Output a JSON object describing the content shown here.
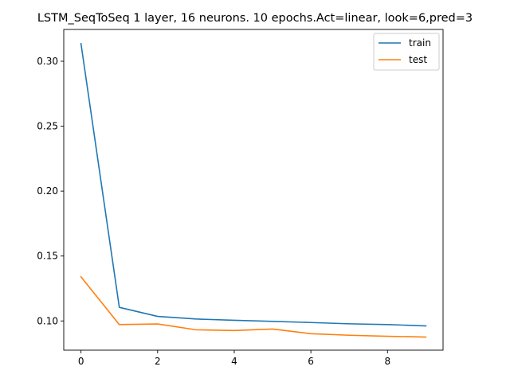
{
  "chart_data": {
    "type": "line",
    "title": "LSTM_SeqToSeq 1 layer, 16 neurons. 10 epochs.Act=linear, look=6,pred=3",
    "xlabel": "",
    "ylabel": "",
    "x": [
      0,
      1,
      2,
      3,
      4,
      5,
      6,
      7,
      8,
      9
    ],
    "xlim": [
      -0.45,
      9.45
    ],
    "ylim": [
      0.0775,
      0.3245
    ],
    "xticks": [
      0,
      2,
      4,
      6,
      8
    ],
    "xtick_labels": [
      "0",
      "2",
      "4",
      "6",
      "8"
    ],
    "yticks": [
      0.1,
      0.15,
      0.2,
      0.25,
      0.3
    ],
    "ytick_labels": [
      "0.10",
      "0.15",
      "0.20",
      "0.25",
      "0.30"
    ],
    "grid": false,
    "legend_position": "top-right",
    "series": [
      {
        "name": "train",
        "color": "#1f77b4",
        "values": [
          0.3135,
          0.1105,
          0.1035,
          0.1015,
          0.1005,
          0.0997,
          0.0988,
          0.0978,
          0.0972,
          0.0962
        ]
      },
      {
        "name": "test",
        "color": "#ff7f0e",
        "values": [
          0.134,
          0.0972,
          0.0977,
          0.0932,
          0.0926,
          0.0938,
          0.0902,
          0.089,
          0.0882,
          0.0876
        ]
      }
    ]
  }
}
